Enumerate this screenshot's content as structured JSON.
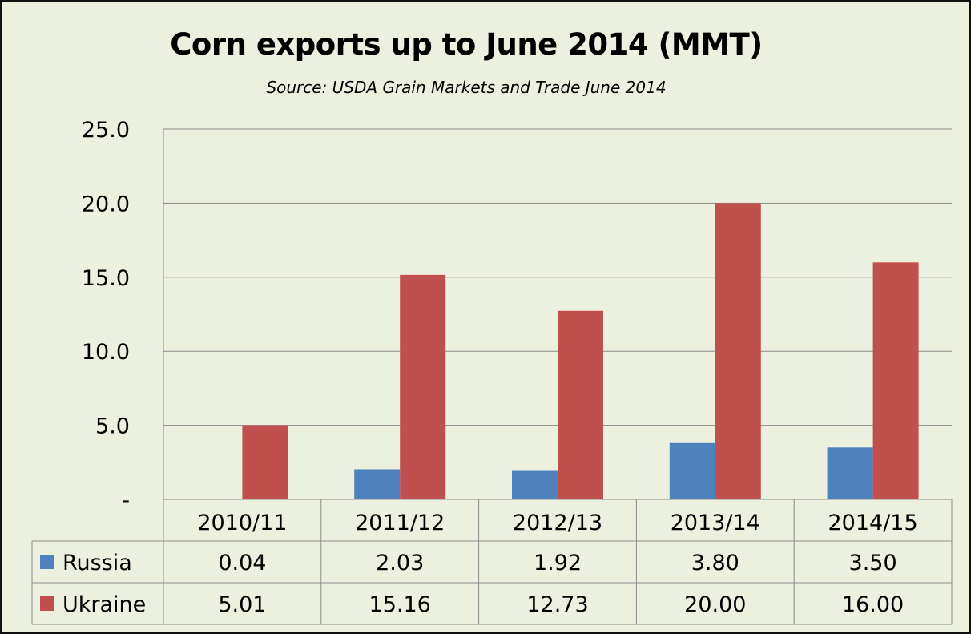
{
  "chart_data": {
    "type": "bar",
    "title": "Corn exports up to June 2014 (MMT)",
    "subtitle": "Source: USDA Grain Markets and Trade June 2014",
    "categories": [
      "2010/11",
      "2011/12",
      "2012/13",
      "2013/14",
      "2014/15"
    ],
    "series": [
      {
        "name": "Russia",
        "color": "#4f81bd",
        "values": [
          0.04,
          2.03,
          1.92,
          3.8,
          3.5
        ],
        "labels": [
          "0.04",
          "2.03",
          "1.92",
          "3.80",
          "3.50"
        ]
      },
      {
        "name": "Ukraine",
        "color": "#c0504d",
        "values": [
          5.01,
          15.16,
          12.73,
          20.0,
          16.0
        ],
        "labels": [
          "5.01",
          "15.16",
          "12.73",
          "20.00",
          "16.00"
        ]
      }
    ],
    "ylim": [
      0,
      25
    ],
    "yticks": [
      0,
      5,
      10,
      15,
      20,
      25
    ],
    "ytick_labels": [
      "-",
      "5.0",
      "10.0",
      "15.0",
      "20.0",
      "25.0"
    ],
    "grid": true,
    "legend": "data-table",
    "background_color": "#ecf0df"
  }
}
